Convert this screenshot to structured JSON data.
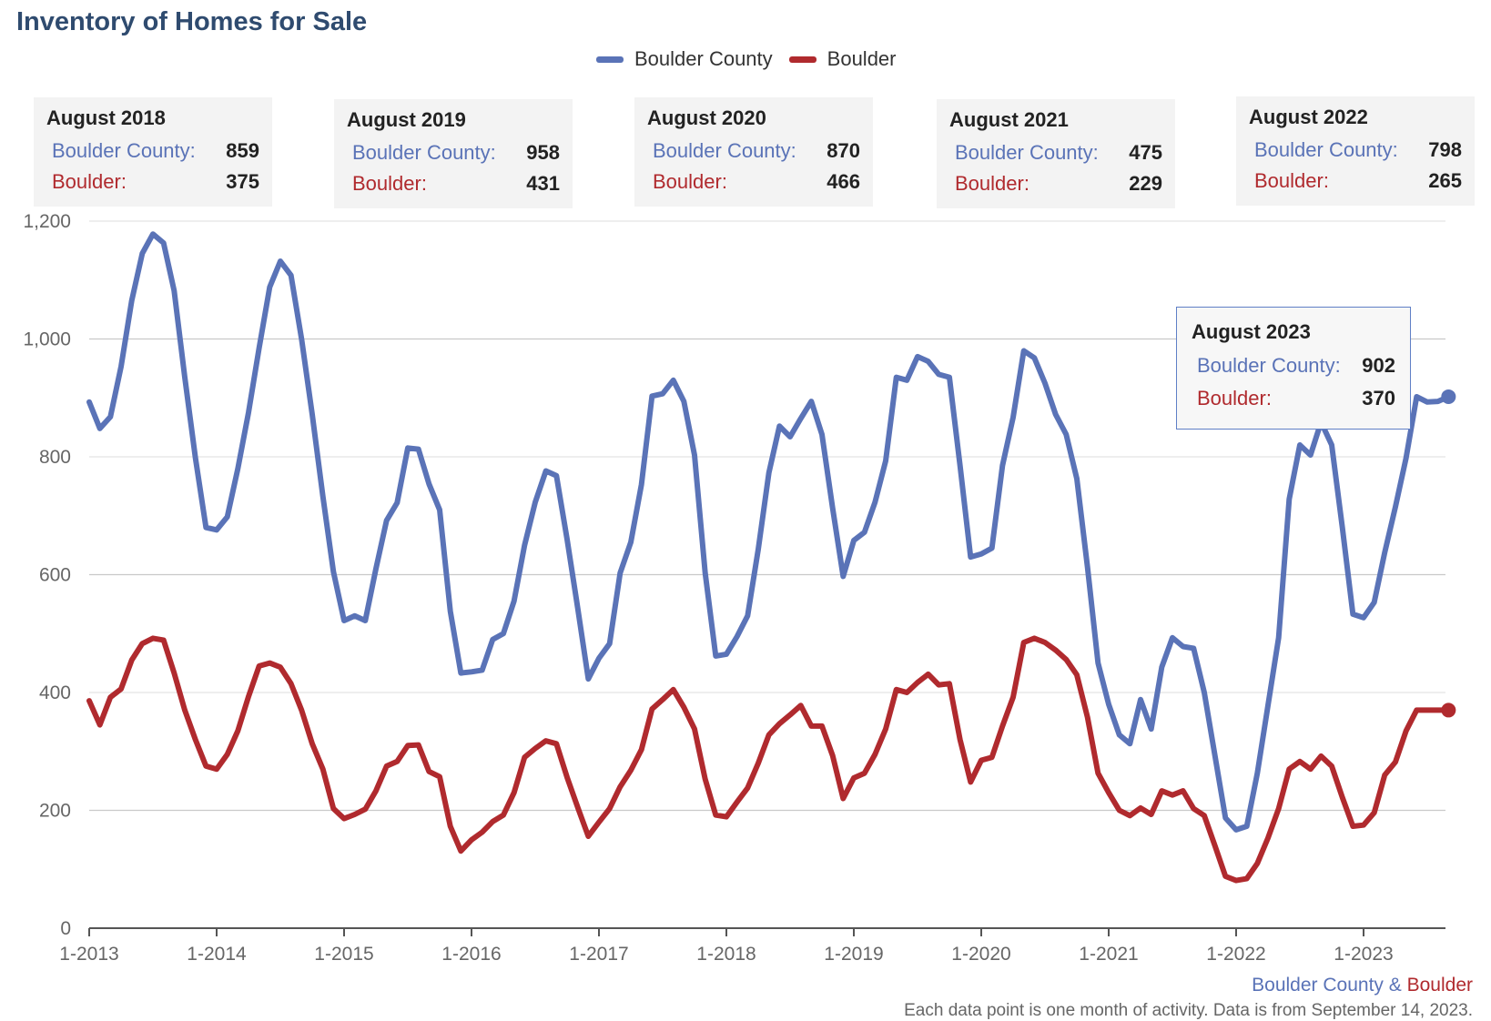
{
  "chart_data": {
    "type": "line",
    "title": "Inventory of Homes for Sale",
    "xlabel": "",
    "ylabel": "",
    "ylim": [
      0,
      1200
    ],
    "yticks": [
      0,
      200,
      400,
      600,
      800,
      1000,
      1200
    ],
    "ytick_labels": [
      "0",
      "200",
      "400",
      "600",
      "800",
      "1,000",
      "1,200"
    ],
    "xtick_labels": [
      "1-2013",
      "1-2014",
      "1-2015",
      "1-2016",
      "1-2017",
      "1-2018",
      "1-2019",
      "1-2020",
      "1-2021",
      "1-2022",
      "1-2023"
    ],
    "x_start": "1-2013",
    "x_end": "8-2023",
    "legend_position": "top-center",
    "series": [
      {
        "name": "Boulder County",
        "color": "#5a73b7",
        "values": [
          893,
          848,
          868,
          953,
          1065,
          1145,
          1178,
          1163,
          1082,
          935,
          798,
          680,
          676,
          698,
          780,
          875,
          985,
          1088,
          1132,
          1108,
          1000,
          872,
          733,
          605,
          522,
          530,
          522,
          610,
          692,
          722,
          815,
          813,
          754,
          710,
          538,
          433,
          435,
          438,
          490,
          500,
          555,
          650,
          723,
          776,
          768,
          660,
          543,
          423,
          458,
          483,
          603,
          655,
          753,
          903,
          907,
          930,
          894,
          803,
          603,
          462,
          465,
          495,
          530,
          643,
          773,
          852,
          834,
          865,
          894,
          838,
          713,
          597,
          658,
          672,
          723,
          793,
          935,
          930,
          970,
          962,
          940,
          935,
          785,
          630,
          635,
          645,
          785,
          867,
          980,
          968,
          925,
          872,
          838,
          763,
          613,
          450,
          380,
          328,
          313,
          388,
          338,
          443,
          493,
          478,
          475,
          400,
          293,
          187,
          167,
          173,
          263,
          378,
          493,
          728,
          820,
          803,
          859,
          820,
          680,
          533,
          527,
          553,
          638,
          715,
          798,
          902,
          893,
          894,
          902
        ],
        "point_every": 1
      },
      {
        "name": "Boulder",
        "color": "#b02a2e",
        "values": [
          386,
          345,
          392,
          406,
          455,
          483,
          492,
          489,
          433,
          370,
          320,
          275,
          270,
          295,
          335,
          393,
          445,
          450,
          443,
          415,
          370,
          313,
          270,
          203,
          186,
          193,
          202,
          233,
          275,
          283,
          310,
          311,
          266,
          257,
          173,
          131,
          150,
          163,
          181,
          192,
          230,
          290,
          305,
          318,
          313,
          256,
          205,
          156,
          180,
          203,
          240,
          268,
          303,
          372,
          388,
          405,
          375,
          338,
          253,
          192,
          189,
          214,
          238,
          280,
          328,
          347,
          362,
          378,
          343,
          343,
          293,
          220,
          255,
          263,
          295,
          338,
          405,
          400,
          417,
          431,
          413,
          415,
          320,
          248,
          285,
          290,
          343,
          392,
          485,
          492,
          485,
          472,
          456,
          430,
          358,
          263,
          230,
          200,
          191,
          204,
          193,
          233,
          226,
          233,
          203,
          191,
          140,
          88,
          81,
          84,
          110,
          153,
          203,
          270,
          283,
          270,
          292,
          275,
          222,
          173,
          175,
          196,
          260,
          282,
          335,
          370,
          370,
          370,
          370
        ],
        "point_every": 1
      }
    ],
    "annotations": [
      {
        "title": "August 2018",
        "county_label": "Boulder County:",
        "county_value": "859",
        "city_label": "Boulder:",
        "city_value": "375"
      },
      {
        "title": "August 2019",
        "county_label": "Boulder County:",
        "county_value": "958",
        "city_label": "Boulder:",
        "city_value": "431"
      },
      {
        "title": "August 2020",
        "county_label": "Boulder County:",
        "county_value": "870",
        "city_label": "Boulder:",
        "city_value": "466"
      },
      {
        "title": "August 2021",
        "county_label": "Boulder County:",
        "county_value": "475",
        "city_label": "Boulder:",
        "city_value": "229"
      },
      {
        "title": "August 2022",
        "county_label": "Boulder County:",
        "county_value": "798",
        "city_label": "Boulder:",
        "city_value": "265"
      }
    ],
    "tooltip": {
      "title": "August 2023",
      "county_label": "Boulder County:",
      "county_value": "902",
      "city_label": "Boulder:",
      "city_value": "370"
    }
  },
  "legend": {
    "county": "Boulder County",
    "city": "Boulder"
  },
  "source": {
    "county": "Boulder County",
    "amp": " & ",
    "city": "Boulder"
  },
  "footnote": "Each data point is one month of activity. Data is from September 14, 2023."
}
